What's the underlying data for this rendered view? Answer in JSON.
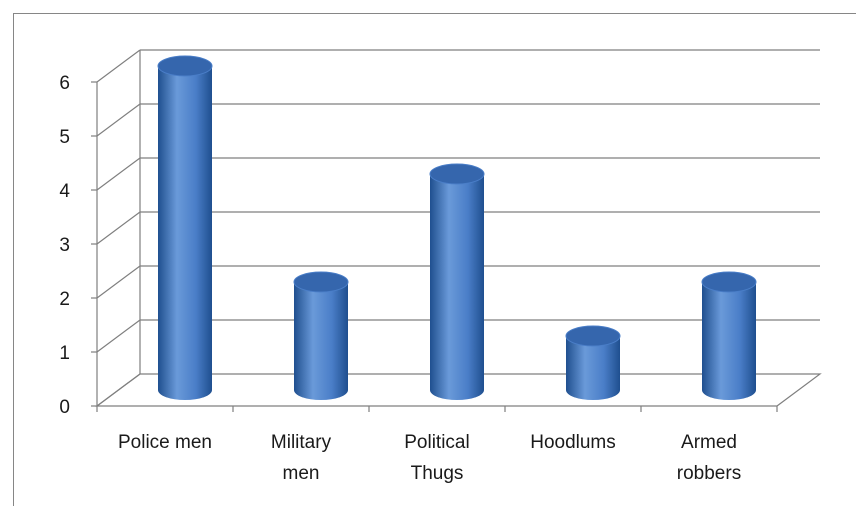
{
  "chart_data": {
    "type": "bar",
    "style": "3d-cylinder",
    "categories": [
      "Police men",
      "Military men",
      "Political Thugs",
      "Hoodlums",
      "Armed robbers"
    ],
    "category_lines": [
      [
        "Police men"
      ],
      [
        "Military",
        "men"
      ],
      [
        "Political",
        "Thugs"
      ],
      [
        "Hoodlums"
      ],
      [
        "Armed",
        "robbers"
      ]
    ],
    "values": [
      6,
      2,
      4,
      1,
      2
    ],
    "yticks": [
      "0",
      "1",
      "2",
      "3",
      "4",
      "5",
      "6"
    ],
    "ylim": [
      0,
      6
    ],
    "grid": true,
    "legend": "none",
    "title": "",
    "xlabel": "",
    "ylabel": "",
    "colors": {
      "bar_light": "#6a9ad9",
      "bar_mid": "#4a7ec8",
      "bar_dark": "#1f4f8f",
      "bar_top": "#3566ad",
      "grid": "#7f7f7f"
    }
  }
}
